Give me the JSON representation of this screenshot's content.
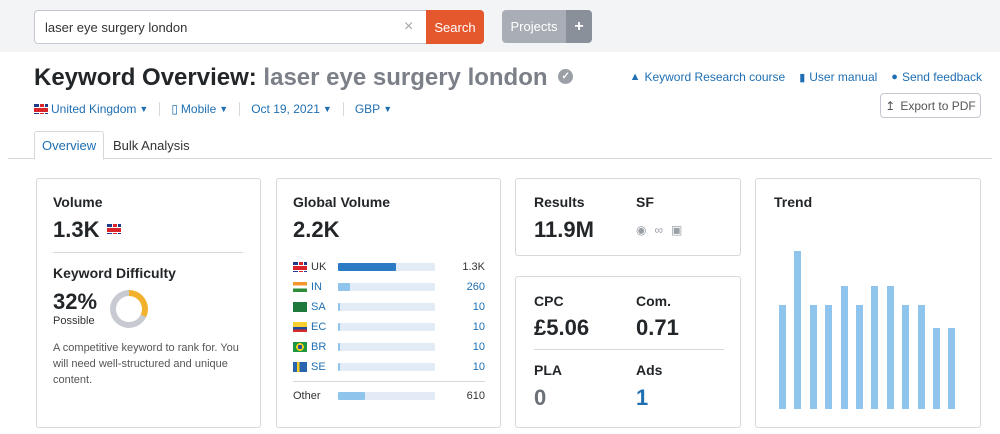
{
  "search": {
    "value": "laser eye surgery london",
    "clear": "×",
    "button": "Search"
  },
  "projects": {
    "label": "Projects",
    "plus": "+"
  },
  "header": {
    "title_prefix": "Keyword Overview:",
    "keyword": "laser eye surgery london",
    "verified": "✓"
  },
  "links": [
    {
      "icon": "graduation-cap-icon",
      "label": "Keyword Research course"
    },
    {
      "icon": "book-icon",
      "label": "User manual"
    },
    {
      "icon": "chat-bubble-icon",
      "label": "Send feedback"
    }
  ],
  "export": {
    "label": "Export to PDF",
    "icon": "export-icon"
  },
  "filters": {
    "country": "United Kingdom",
    "device": "Mobile",
    "date": "Oct 19, 2021",
    "currency": "GBP"
  },
  "tabs": {
    "overview": "Overview",
    "bulk": "Bulk Analysis"
  },
  "volume": {
    "title": "Volume",
    "value": "1.3K",
    "kd_title": "Keyword Difficulty",
    "kd_value": "32%",
    "kd_label": "Possible",
    "kd_percent": 32,
    "kd_desc_1": "A competitive keyword to rank for. You",
    "kd_desc_2": "will need well-structured and unique",
    "kd_desc_3": "content."
  },
  "global_volume": {
    "title": "Global Volume",
    "value": "2.2K",
    "rows": [
      {
        "code": "UK",
        "value": "1.3K",
        "fill_pct": 60,
        "highlight": true
      },
      {
        "code": "IN",
        "value": "260",
        "fill_pct": 12,
        "highlight": false
      },
      {
        "code": "SA",
        "value": "10",
        "fill_pct": 2,
        "highlight": false
      },
      {
        "code": "EC",
        "value": "10",
        "fill_pct": 2,
        "highlight": false
      },
      {
        "code": "BR",
        "value": "10",
        "fill_pct": 2,
        "highlight": false
      },
      {
        "code": "SE",
        "value": "10",
        "fill_pct": 2,
        "highlight": false
      }
    ],
    "other": {
      "label": "Other",
      "value": "610",
      "fill_pct": 28
    }
  },
  "results": {
    "title": "Results",
    "value": "11.9M",
    "sf_title": "SF"
  },
  "cpc": {
    "cpc_title": "CPC",
    "cpc_value": "£5.06",
    "com_title": "Com.",
    "com_value": "0.71",
    "pla_title": "PLA",
    "pla_value": "0",
    "ads_title": "Ads",
    "ads_value": "1"
  },
  "trend": {
    "title": "Trend",
    "values": [
      0.66,
      1.0,
      0.66,
      0.66,
      0.78,
      0.66,
      0.78,
      0.78,
      0.66,
      0.66,
      0.51,
      0.51
    ]
  },
  "colors": {
    "accent": "#1f6fb2",
    "search_button": "#e5582e",
    "bar_primary": "#2a7bc4",
    "bar_light": "#8fc4ec",
    "donut": "#f2b12c"
  }
}
